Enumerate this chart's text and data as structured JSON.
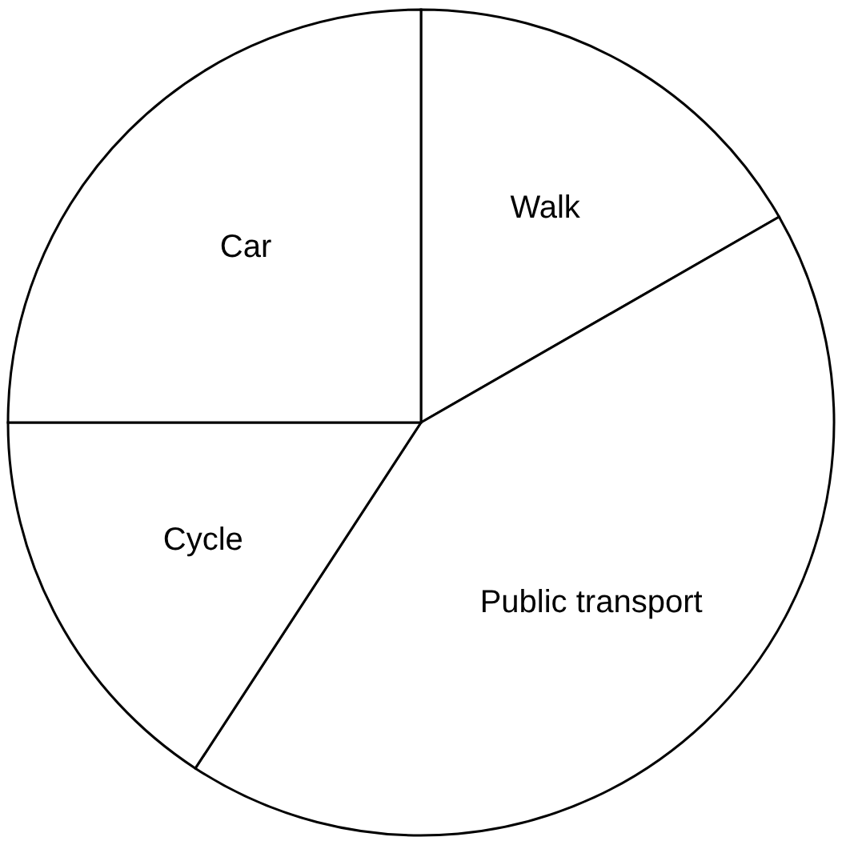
{
  "chart_data": {
    "type": "pie",
    "categories": [
      "Walk",
      "Public transport",
      "Cycle",
      "Car"
    ],
    "values": [
      16.7,
      42.5,
      15.8,
      25.0
    ],
    "colors": [
      "#ffffff",
      "#ffffff",
      "#ffffff",
      "#ffffff"
    ]
  }
}
